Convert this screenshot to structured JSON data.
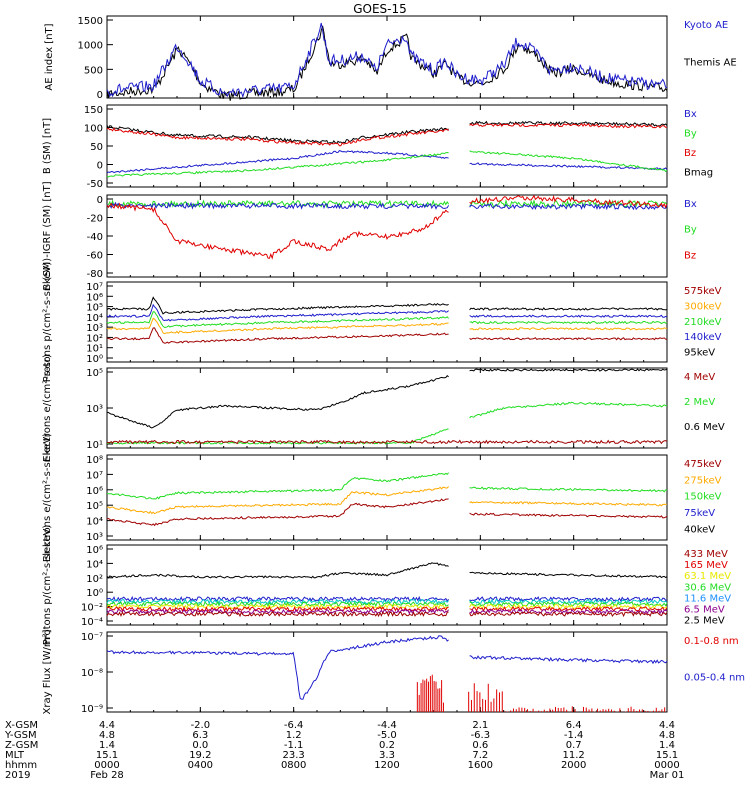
{
  "title": "GOES-15",
  "colors": {
    "black": "#000000",
    "blue": "#1e1ecc",
    "green": "#22dd22",
    "red": "#e00000",
    "darkred": "#a00000",
    "orange": "#ffaa00",
    "cyan": "#00c8c8",
    "yellow": "#e8e800",
    "purple": "#8c008c",
    "gold": "#ffaa00"
  },
  "chart_data": [
    {
      "type": "line",
      "ylabel": "AE index [nT]",
      "ylim": [
        0,
        1500
      ],
      "yticks": [
        "1500",
        "1000",
        "500",
        "0"
      ],
      "legend": [
        {
          "name": "Kyoto AE",
          "color": "#1e1ecc"
        },
        {
          "name": "Themis AE",
          "color": "#000000"
        }
      ],
      "series": [
        {
          "name": "Kyoto AE",
          "points": [
            [
              0,
              100
            ],
            [
              2,
              200
            ],
            [
              3,
              1000
            ],
            [
              3.5,
              700
            ],
            [
              4,
              300
            ],
            [
              5,
              50
            ],
            [
              6,
              100
            ],
            [
              7.5,
              150
            ],
            [
              8,
              200
            ],
            [
              9.2,
              1400
            ],
            [
              9.5,
              700
            ],
            [
              10,
              700
            ],
            [
              11,
              800
            ],
            [
              11.5,
              500
            ],
            [
              12,
              1000
            ],
            [
              12.8,
              1200
            ],
            [
              13,
              800
            ],
            [
              14,
              500
            ],
            [
              14.5,
              700
            ],
            [
              15,
              400
            ],
            [
              16,
              300
            ],
            [
              17,
              600
            ],
            [
              17.6,
              1100
            ],
            [
              18.5,
              800
            ],
            [
              19,
              500
            ],
            [
              20,
              600
            ],
            [
              21,
              400
            ],
            [
              22,
              300
            ],
            [
              24,
              200
            ]
          ]
        }
      ]
    },
    {
      "type": "line",
      "ylabel": "B (SM) [nT]",
      "ylim": [
        -60,
        150
      ],
      "yticks": [
        "150",
        "100",
        "50",
        "0",
        "-50"
      ],
      "legend": [
        {
          "name": "Bx",
          "color": "#1e1ecc"
        },
        {
          "name": "By",
          "color": "#22dd22"
        },
        {
          "name": "Bz",
          "color": "#e00000"
        },
        {
          "name": "Bmag",
          "color": "#000000"
        }
      ]
    },
    {
      "type": "line",
      "ylabel": "B (SM)-IGRF (SM) [nT]",
      "ylim": [
        -85,
        8
      ],
      "yticks": [
        "0",
        "-20",
        "-40",
        "-60",
        "-80"
      ],
      "legend": [
        {
          "name": "Bx",
          "color": "#1e1ecc"
        },
        {
          "name": "By",
          "color": "#22dd22"
        },
        {
          "name": "Bz",
          "color": "#e00000"
        }
      ]
    },
    {
      "type": "line",
      "ylabel": "Protons p/(cm²-s-sr-keV)",
      "yticks": [
        "10⁷",
        "10⁶",
        "10⁵",
        "10⁴",
        "10³",
        "10²",
        "10¹",
        "10⁰"
      ],
      "legend": [
        {
          "name": "575keV",
          "color": "#a00000"
        },
        {
          "name": "300keV",
          "color": "#ffaa00"
        },
        {
          "name": "210keV",
          "color": "#22dd22"
        },
        {
          "name": "140keV",
          "color": "#1e1ecc"
        },
        {
          "name": "95keV",
          "color": "#000000"
        }
      ]
    },
    {
      "type": "line",
      "ylabel": "Electrons e/(cm²-s-sr)",
      "yticks": [
        "10⁵",
        "10³",
        "10¹"
      ],
      "legend": [
        {
          "name": "4 MeV",
          "color": "#a00000"
        },
        {
          "name": "2 MeV",
          "color": "#22dd22"
        },
        {
          "name": "0.6 MeV",
          "color": "#000000"
        }
      ]
    },
    {
      "type": "line",
      "ylabel": "Electrons e/(cm²-s-sr-keV)",
      "yticks": [
        "10⁸",
        "10⁷",
        "10⁶",
        "10⁵",
        "10⁴",
        "10³"
      ],
      "legend": [
        {
          "name": "475keV",
          "color": "#a00000"
        },
        {
          "name": "275keV",
          "color": "#ffaa00"
        },
        {
          "name": "150keV",
          "color": "#22dd22"
        },
        {
          "name": "75keV",
          "color": "#1e1ecc"
        },
        {
          "name": "40keV",
          "color": "#000000"
        }
      ]
    },
    {
      "type": "line",
      "ylabel": "Protons p/(cm²-s-sr-keV)",
      "yticks": [
        "10⁶",
        "10⁴",
        "10²",
        "10⁰",
        "10⁻²",
        "10⁻⁴"
      ],
      "legend": [
        {
          "name": "433 MeV",
          "color": "#a00000"
        },
        {
          "name": "165 MeV",
          "color": "#e00000"
        },
        {
          "name": "63.1 MeV",
          "color": "#e8e800"
        },
        {
          "name": "30.6 MeV",
          "color": "#22dd22"
        },
        {
          "name": "11.6 MeV",
          "color": "#1e90ff"
        },
        {
          "name": "6.5 MeV",
          "color": "#8c008c"
        },
        {
          "name": "2.5 MeV",
          "color": "#000000"
        }
      ]
    },
    {
      "type": "line",
      "ylabel": "Xray Flux [W/m²]",
      "yticks": [
        "10⁻⁷",
        "10⁻⁸",
        "10⁻⁹"
      ],
      "legend": [
        {
          "name": "0.1-0.8 nm",
          "color": "#e00000"
        },
        {
          "name": "0.05-0.4 nm",
          "color": "#1e1ecc"
        }
      ]
    }
  ],
  "footer": {
    "row_labels": [
      "X-GSM",
      "Y-GSM",
      "Z-GSM",
      "MLT",
      "hhmm",
      "2019"
    ],
    "columns": [
      {
        "x": "4.4",
        "y": "4.8",
        "z": "1.4",
        "mlt": "15.1",
        "hhmm": "0000",
        "date": "Feb 28"
      },
      {
        "x": "-2.0",
        "y": "6.3",
        "z": "0.0",
        "mlt": "19.2",
        "hhmm": "0400",
        "date": ""
      },
      {
        "x": "-6.4",
        "y": "1.2",
        "z": "-1.1",
        "mlt": "23.3",
        "hhmm": "0800",
        "date": ""
      },
      {
        "x": "-4.4",
        "y": "-5.0",
        "z": "0.2",
        "mlt": "3.3",
        "hhmm": "1200",
        "date": ""
      },
      {
        "x": "2.1",
        "y": "-6.3",
        "z": "0.6",
        "mlt": "7.2",
        "hhmm": "1600",
        "date": ""
      },
      {
        "x": "6.4",
        "y": "-1.4",
        "z": "0.7",
        "mlt": "11.2",
        "hhmm": "2000",
        "date": ""
      },
      {
        "x": "4.4",
        "y": "4.8",
        "z": "1.4",
        "mlt": "15.1",
        "hhmm": "0000",
        "date": "Mar 01"
      }
    ]
  }
}
